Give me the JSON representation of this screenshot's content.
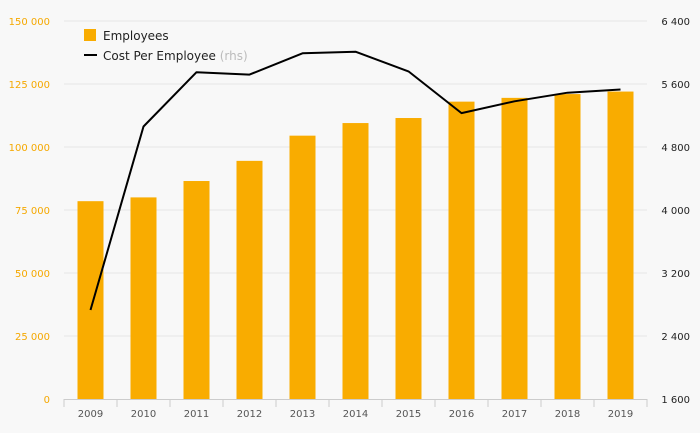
{
  "chart_data": {
    "type": "bar",
    "categories": [
      "2009",
      "2010",
      "2011",
      "2012",
      "2013",
      "2014",
      "2015",
      "2016",
      "2017",
      "2018",
      "2019"
    ],
    "series": [
      {
        "name": "Employees",
        "type": "bar",
        "axis": "left",
        "color": "#f9ac00",
        "values": [
          78500,
          80000,
          86500,
          94500,
          104500,
          109500,
          111500,
          118000,
          119500,
          121000,
          122000
        ]
      },
      {
        "name": "Cost Per Employee",
        "name_suffix": "(rhs)",
        "type": "line",
        "axis": "right",
        "color": "#000000",
        "values": [
          2730,
          5060,
          5750,
          5720,
          5990,
          6010,
          5760,
          5230,
          5380,
          5490,
          5530
        ]
      }
    ],
    "y_left": {
      "range": [
        0,
        150000
      ],
      "ticks": [
        0,
        25000,
        50000,
        75000,
        100000,
        125000,
        150000
      ],
      "tick_labels": [
        "0",
        "25 000",
        "50 000",
        "75 000",
        "100 000",
        "125 000",
        "150 000"
      ],
      "color": "#f5a800"
    },
    "y_right": {
      "range": [
        1600,
        6400
      ],
      "ticks": [
        1600,
        2400,
        3200,
        4000,
        4800,
        5600,
        6400
      ],
      "tick_labels": [
        "1 600",
        "2 400",
        "3 200",
        "4 000",
        "4 800",
        "5 600",
        "6 400"
      ],
      "color": "#222222"
    },
    "grid": true,
    "legend_position": "top-left"
  }
}
